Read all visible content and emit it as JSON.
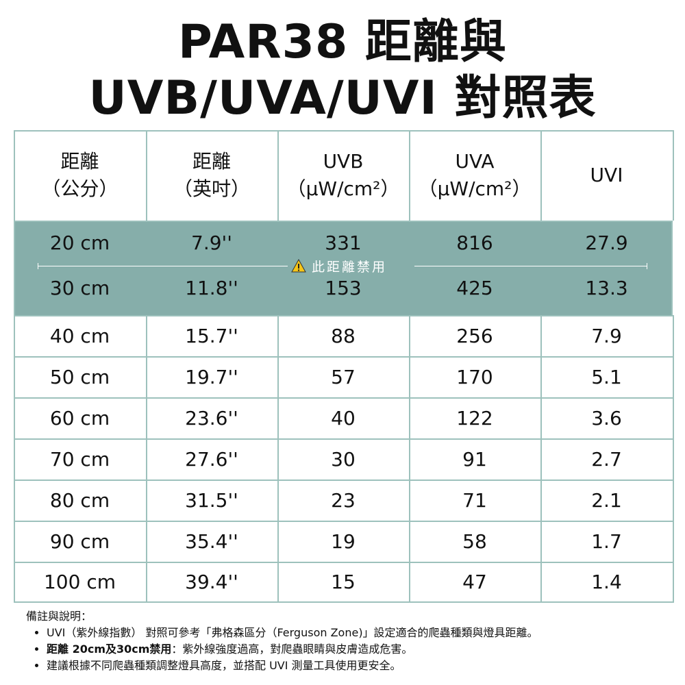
{
  "header": {
    "title": [
      "PAR38 距離與",
      "UVB/UVA/UVI 對照表"
    ]
  },
  "table": {
    "columns": [
      [
        "距離",
        "（公分）"
      ],
      [
        "距離",
        "（英吋）"
      ],
      [
        "UVB",
        "（µW/cm²）"
      ],
      [
        "UVA",
        "（µW/cm²）"
      ],
      [
        "UVI"
      ]
    ],
    "rows": [
      [
        "20 cm",
        "7.9''",
        "331",
        "816",
        "27.9"
      ],
      [
        "30 cm",
        "11.8''",
        "153",
        "425",
        "13.3"
      ],
      [
        "40 cm",
        "15.7''",
        "88",
        "256",
        "7.9"
      ],
      [
        "50 cm",
        "19.7''",
        "57",
        "170",
        "5.1"
      ],
      [
        "60 cm",
        "23.6''",
        "40",
        "122",
        "3.6"
      ],
      [
        "70 cm",
        "27.6''",
        "30",
        "91",
        "2.7"
      ],
      [
        "80 cm",
        "31.5''",
        "23",
        "71",
        "2.1"
      ],
      [
        "90 cm",
        "35.4''",
        "19",
        "58",
        "1.7"
      ],
      [
        "100 cm",
        "39.4''",
        "15",
        "47",
        "1.4"
      ]
    ],
    "warning": "此距離禁用"
  },
  "notes": {
    "title": "備註與說明：",
    "items": [
      {
        "text": "UVI（紫外線指數） 對照可參考「弗格森區分（Ferguson Zone)」設定適合的爬蟲種類與燈具距離。"
      },
      {
        "bold": "距離 20cm及30cm禁用",
        "text": "：紫外線強度過高，對爬蟲眼睛與皮膚造成危害。"
      },
      {
        "text": "建議根據不同爬蟲種類調整燈具高度，並搭配 UVI 測量工具使用更安全。"
      }
    ]
  }
}
